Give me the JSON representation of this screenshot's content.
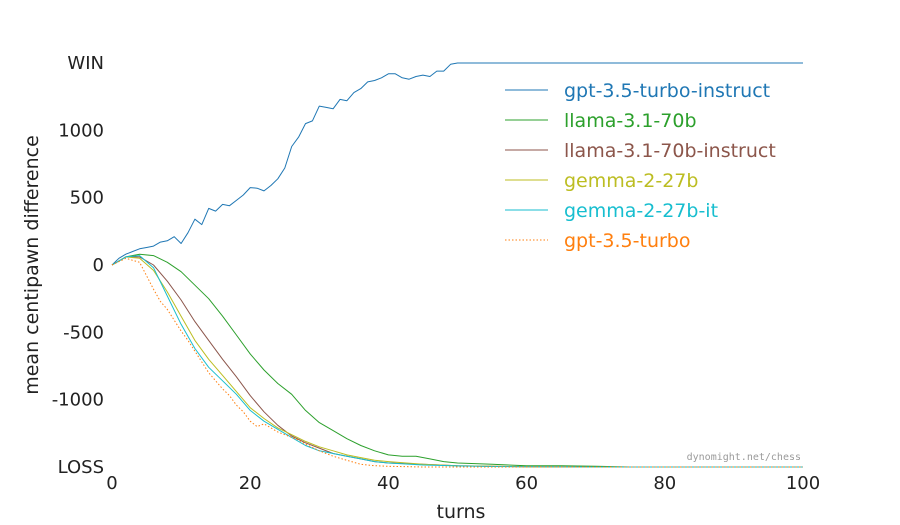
{
  "chart_data": {
    "type": "line",
    "xlabel": "turns",
    "ylabel": "mean centipawn difference",
    "xlim": [
      0,
      100
    ],
    "ylim": [
      -1500,
      1500
    ],
    "x_ticks": [
      0,
      20,
      40,
      60,
      80,
      100
    ],
    "y_ticks": [
      {
        "value": 1500,
        "label": "WIN"
      },
      {
        "value": 1000,
        "label": "1000"
      },
      {
        "value": 500,
        "label": "500"
      },
      {
        "value": 0,
        "label": "0"
      },
      {
        "value": -500,
        "label": "-500"
      },
      {
        "value": -1000,
        "label": "-1000"
      },
      {
        "value": -1500,
        "label": "LOSS"
      }
    ],
    "grid": false,
    "legend_position": "top-right",
    "watermark": "dynomight.net/chess",
    "series": [
      {
        "name": "gpt-3.5-turbo-instruct",
        "color": "#1f77b4",
        "style": "solid",
        "x": [
          0,
          1,
          2,
          3,
          4,
          5,
          6,
          7,
          8,
          9,
          10,
          11,
          12,
          13,
          14,
          15,
          16,
          17,
          18,
          19,
          20,
          21,
          22,
          23,
          24,
          25,
          26,
          27,
          28,
          29,
          30,
          31,
          32,
          33,
          34,
          35,
          36,
          37,
          38,
          39,
          40,
          41,
          42,
          43,
          44,
          45,
          46,
          47,
          48,
          49,
          50,
          60,
          70,
          80,
          90,
          100
        ],
        "values": [
          0,
          50,
          80,
          100,
          120,
          130,
          140,
          170,
          180,
          210,
          160,
          240,
          340,
          300,
          420,
          400,
          450,
          440,
          480,
          520,
          575,
          570,
          550,
          590,
          640,
          720,
          880,
          950,
          1050,
          1070,
          1180,
          1170,
          1160,
          1230,
          1220,
          1280,
          1310,
          1360,
          1370,
          1390,
          1420,
          1420,
          1390,
          1380,
          1400,
          1410,
          1400,
          1440,
          1440,
          1490,
          1500,
          1500,
          1500,
          1500,
          1500,
          1500
        ]
      },
      {
        "name": "llama-3.1-70b",
        "color": "#2ca02c",
        "style": "solid",
        "x": [
          0,
          2,
          4,
          6,
          8,
          10,
          12,
          14,
          16,
          18,
          20,
          22,
          24,
          26,
          28,
          30,
          32,
          34,
          36,
          38,
          40,
          42,
          44,
          46,
          48,
          50,
          55,
          60,
          65,
          70,
          75,
          80,
          90,
          100
        ],
        "values": [
          0,
          60,
          80,
          70,
          20,
          -50,
          -150,
          -250,
          -380,
          -520,
          -660,
          -780,
          -880,
          -960,
          -1080,
          -1170,
          -1230,
          -1290,
          -1340,
          -1380,
          -1410,
          -1420,
          -1420,
          -1440,
          -1460,
          -1470,
          -1480,
          -1490,
          -1490,
          -1495,
          -1500,
          -1500,
          -1500,
          -1500
        ]
      },
      {
        "name": "llama-3.1-70b-instruct",
        "color": "#8c564b",
        "style": "solid",
        "x": [
          0,
          2,
          4,
          6,
          8,
          10,
          12,
          14,
          16,
          18,
          20,
          22,
          24,
          26,
          28,
          30,
          32,
          34,
          36,
          38,
          40,
          45,
          50,
          55,
          60,
          70,
          80,
          90,
          100
        ],
        "values": [
          0,
          60,
          60,
          0,
          -120,
          -260,
          -420,
          -560,
          -700,
          -830,
          -970,
          -1090,
          -1190,
          -1270,
          -1320,
          -1360,
          -1400,
          -1420,
          -1440,
          -1460,
          -1470,
          -1480,
          -1490,
          -1495,
          -1498,
          -1500,
          -1500,
          -1500,
          -1500
        ]
      },
      {
        "name": "gemma-2-27b",
        "color": "#bcbd22",
        "style": "solid",
        "x": [
          0,
          2,
          4,
          6,
          8,
          10,
          12,
          14,
          16,
          18,
          20,
          22,
          24,
          26,
          28,
          30,
          32,
          34,
          36,
          38,
          40,
          45,
          50,
          55,
          60,
          70,
          80,
          90,
          100
        ],
        "values": [
          0,
          60,
          50,
          -40,
          -200,
          -380,
          -560,
          -700,
          -820,
          -940,
          -1060,
          -1140,
          -1210,
          -1260,
          -1310,
          -1350,
          -1380,
          -1410,
          -1430,
          -1450,
          -1460,
          -1480,
          -1490,
          -1495,
          -1498,
          -1500,
          -1500,
          -1500,
          -1500
        ]
      },
      {
        "name": "gemma-2-27b-it",
        "color": "#17becf",
        "style": "solid",
        "x": [
          0,
          2,
          4,
          6,
          8,
          10,
          12,
          14,
          16,
          18,
          20,
          22,
          24,
          26,
          28,
          30,
          32,
          34,
          36,
          38,
          40,
          45,
          50,
          55,
          60,
          70,
          80,
          90,
          100
        ],
        "values": [
          0,
          60,
          70,
          -20,
          -230,
          -440,
          -620,
          -760,
          -860,
          -960,
          -1080,
          -1160,
          -1220,
          -1280,
          -1340,
          -1380,
          -1400,
          -1420,
          -1440,
          -1460,
          -1470,
          -1485,
          -1492,
          -1496,
          -1498,
          -1500,
          -1500,
          -1500,
          -1500
        ]
      },
      {
        "name": "gpt-3.5-turbo",
        "color": "#ff7f0e",
        "style": "dotted",
        "x": [
          0,
          2,
          4,
          5,
          6,
          7,
          8,
          9,
          10,
          11,
          12,
          13,
          14,
          15,
          16,
          17,
          18,
          19,
          20,
          21,
          22,
          23,
          24,
          25,
          26,
          27,
          28,
          30,
          32,
          34,
          36,
          38,
          40,
          45,
          50,
          60,
          70,
          80,
          90,
          100
        ],
        "values": [
          0,
          50,
          20,
          -80,
          -180,
          -270,
          -330,
          -410,
          -490,
          -560,
          -640,
          -720,
          -800,
          -860,
          -920,
          -970,
          -1040,
          -1090,
          -1160,
          -1200,
          -1180,
          -1210,
          -1240,
          -1260,
          -1280,
          -1300,
          -1330,
          -1380,
          -1420,
          -1450,
          -1480,
          -1490,
          -1495,
          -1500,
          -1500,
          -1500,
          -1500,
          -1500,
          -1500,
          -1500
        ]
      }
    ]
  }
}
